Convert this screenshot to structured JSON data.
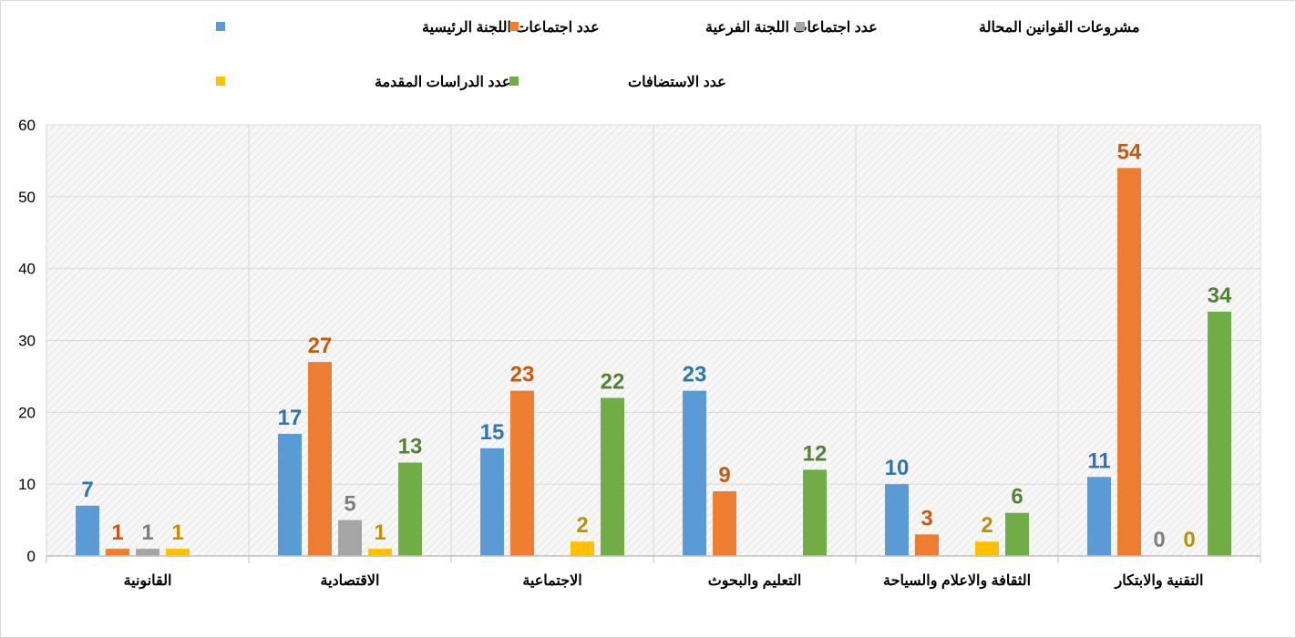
{
  "chart_data": {
    "type": "bar",
    "title": "",
    "xlabel": "",
    "ylabel": "",
    "ylim": [
      0,
      60
    ],
    "yticks": [
      0,
      10,
      20,
      30,
      40,
      50,
      60
    ],
    "grid": true,
    "legend_position": "top",
    "categories": [
      "القانونية",
      "الاقتصادية",
      "الاجتماعية",
      "التعليم والبحوث",
      "الثقافة والاعلام والسياحة",
      "التقنية والابتكار"
    ],
    "series": [
      {
        "name": "عدد اجتماعات اللجنة الرئيسية",
        "color": "#5b9bd5",
        "label_color": "#2e75b6",
        "values": [
          7,
          17,
          15,
          23,
          10,
          11
        ]
      },
      {
        "name": "عدد اجتماعات اللجنة الفرعية",
        "color": "#ed7d31",
        "label_color": "#c55a11",
        "values": [
          1,
          27,
          23,
          9,
          3,
          54
        ]
      },
      {
        "name": "مشروعات القوانين المحالة",
        "color": "#a5a5a5",
        "label_color": "#7f7f7f",
        "values": [
          1,
          5,
          null,
          null,
          null,
          0
        ]
      },
      {
        "name": "عدد الدراسات المقدمة",
        "color": "#ffc000",
        "label_color": "#bf9000",
        "values": [
          1,
          1,
          2,
          null,
          2,
          0
        ]
      },
      {
        "name": "عدد الاستضافات",
        "color": "#70ad47",
        "label_color": "#548235",
        "values": [
          null,
          13,
          22,
          12,
          6,
          34
        ]
      }
    ]
  }
}
